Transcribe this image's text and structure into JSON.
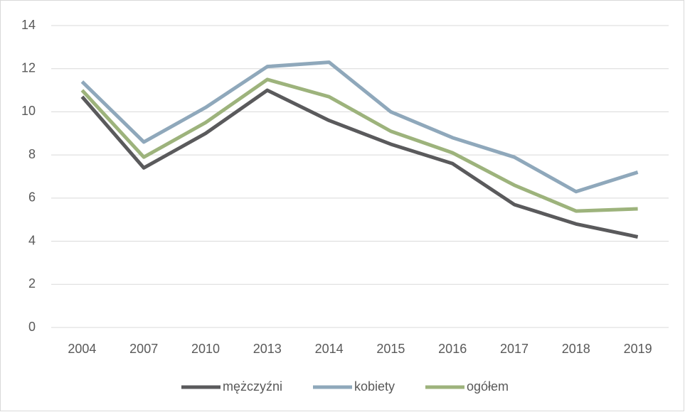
{
  "chart_data": {
    "type": "line",
    "categories": [
      "2004",
      "2007",
      "2010",
      "2013",
      "2014",
      "2015",
      "2016",
      "2017",
      "2018",
      "2019"
    ],
    "series": [
      {
        "name": "mężczyźni",
        "color": "#5a5a5c",
        "values": [
          10.7,
          7.4,
          9.0,
          11.0,
          9.6,
          8.5,
          7.6,
          5.7,
          4.8,
          4.2
        ]
      },
      {
        "name": "kobiety",
        "color": "#8fa8bb",
        "values": [
          11.4,
          8.6,
          10.2,
          12.1,
          12.3,
          10.0,
          8.8,
          7.9,
          6.3,
          7.2
        ]
      },
      {
        "name": "ogółem",
        "color": "#9db37c",
        "values": [
          11.0,
          7.9,
          9.5,
          11.5,
          10.7,
          9.1,
          8.1,
          6.6,
          5.4,
          5.5
        ]
      }
    ],
    "ylim": [
      0,
      14
    ],
    "yticks": [
      0,
      2,
      4,
      6,
      8,
      10,
      12,
      14
    ],
    "grid": true,
    "legend": "bottom"
  }
}
